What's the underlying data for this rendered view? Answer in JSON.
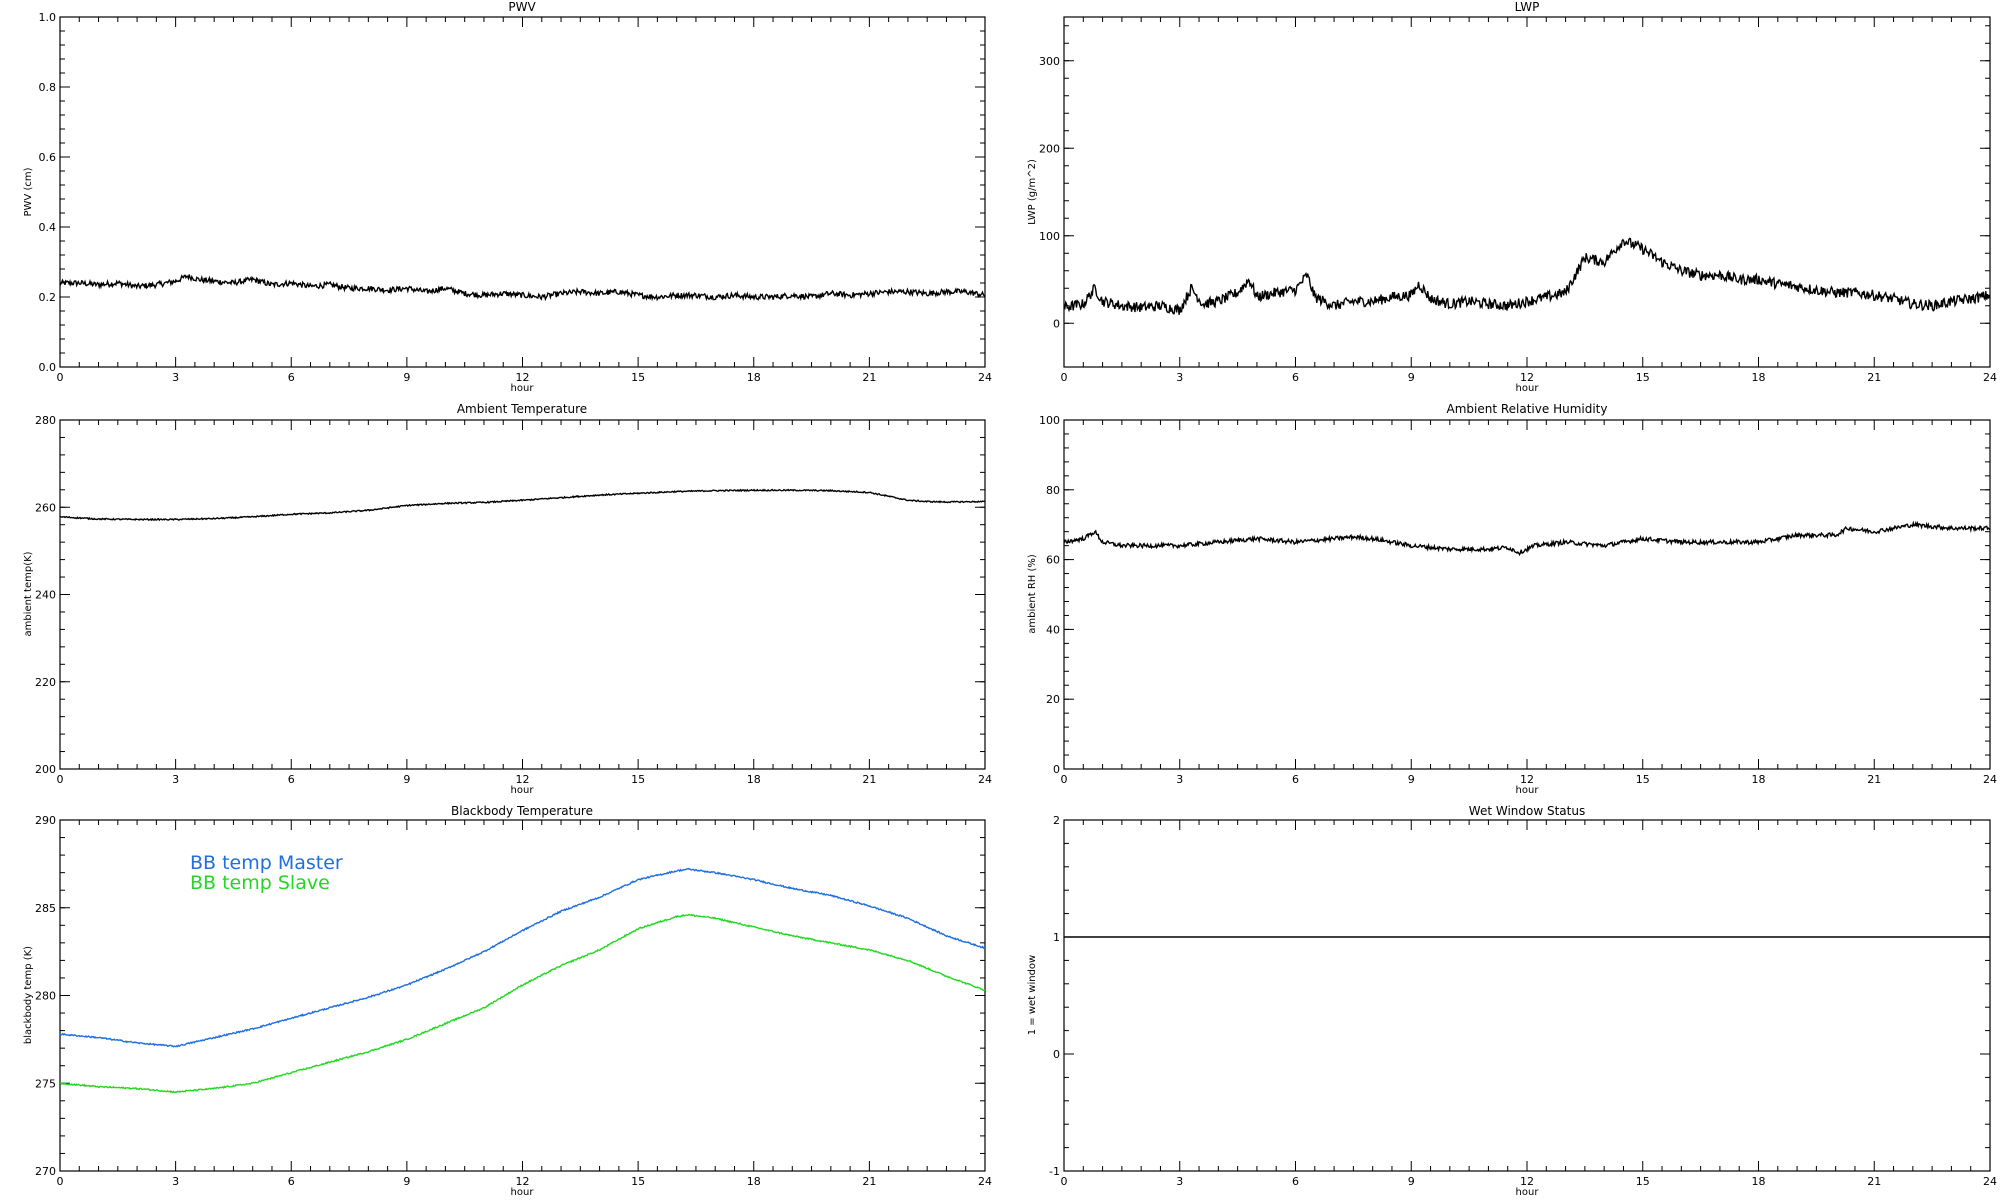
{
  "figure": {
    "panels": [
      {
        "title": "PWV",
        "xlabel": "hour",
        "ylabel": "PWV (cm)"
      },
      {
        "title": "LWP",
        "xlabel": "hour",
        "ylabel": "LWP (g/m^2)"
      },
      {
        "title": "Ambient Temperature",
        "xlabel": "hour",
        "ylabel": "ambient temp(K)"
      },
      {
        "title": "Ambient Relative Humidity",
        "xlabel": "hour",
        "ylabel": "ambient RH (%)"
      },
      {
        "title": "Blackbody Temperature",
        "xlabel": "hour",
        "ylabel": "blackbody temp (K)",
        "legend": [
          "BB temp Master",
          "BB temp Slave"
        ]
      },
      {
        "title": "Wet Window Status",
        "xlabel": "hour",
        "ylabel": "1 = wet window"
      }
    ]
  },
  "chart_data": [
    {
      "type": "line",
      "title": "PWV",
      "xlabel": "hour",
      "ylabel": "PWV (cm)",
      "xlim": [
        0,
        24
      ],
      "ylim": [
        0.0,
        1.0
      ],
      "xticks": [
        0,
        3,
        6,
        9,
        12,
        15,
        18,
        21,
        24
      ],
      "yticks": [
        0.0,
        0.2,
        0.4,
        0.6,
        0.8,
        1.0
      ],
      "ytick_labels": [
        "0.0",
        "0.2",
        "0.4",
        "0.6",
        "0.8",
        "1.0"
      ],
      "noise": 0.008,
      "color": "#000000",
      "series": [
        {
          "x": [
            0,
            0.5,
            1,
            1.5,
            2,
            2.5,
            3,
            3.3,
            3.6,
            4,
            4.5,
            5,
            5.5,
            6,
            6.5,
            7,
            7.5,
            8,
            8.5,
            9,
            9.5,
            10,
            10.5,
            11,
            11.5,
            12,
            12.5,
            13,
            13.5,
            14,
            14.5,
            15,
            15.5,
            16,
            16.5,
            17,
            17.5,
            18,
            18.5,
            19,
            19.5,
            20,
            20.5,
            21,
            21.5,
            22,
            22.5,
            23,
            23.5,
            24
          ],
          "values": [
            0.24,
            0.24,
            0.235,
            0.24,
            0.23,
            0.235,
            0.245,
            0.26,
            0.25,
            0.245,
            0.24,
            0.25,
            0.235,
            0.24,
            0.23,
            0.235,
            0.225,
            0.225,
            0.22,
            0.225,
            0.215,
            0.225,
            0.21,
            0.205,
            0.21,
            0.205,
            0.2,
            0.21,
            0.215,
            0.21,
            0.215,
            0.205,
            0.2,
            0.205,
            0.205,
            0.2,
            0.205,
            0.2,
            0.2,
            0.205,
            0.2,
            0.21,
            0.205,
            0.21,
            0.215,
            0.215,
            0.21,
            0.215,
            0.215,
            0.205
          ]
        }
      ]
    },
    {
      "type": "line",
      "title": "LWP",
      "xlabel": "hour",
      "ylabel": "LWP (g/m^2)",
      "xlim": [
        0,
        24
      ],
      "ylim": [
        -50,
        350
      ],
      "xticks": [
        0,
        3,
        6,
        9,
        12,
        15,
        18,
        21,
        24
      ],
      "yticks": [
        0,
        100,
        200,
        300
      ],
      "ytick_labels": [
        "0",
        "100",
        "200",
        "300"
      ],
      "noise": 6,
      "color": "#000000",
      "series": [
        {
          "x": [
            0,
            0.5,
            0.8,
            1,
            1.5,
            2,
            2.5,
            3,
            3.3,
            3.6,
            4,
            4.5,
            4.8,
            5,
            5.5,
            6,
            6.3,
            6.5,
            7,
            7.5,
            8,
            8.5,
            9,
            9.2,
            9.5,
            10,
            10.5,
            11,
            11.5,
            12,
            12.5,
            13,
            13.5,
            14,
            14.5,
            15,
            15.5,
            16,
            16.5,
            17,
            17.5,
            18,
            18.5,
            19,
            19.5,
            20,
            20.5,
            21,
            21.5,
            22,
            22.5,
            23,
            23.5,
            24
          ],
          "values": [
            18,
            22,
            40,
            25,
            20,
            18,
            20,
            15,
            40,
            22,
            25,
            35,
            50,
            30,
            35,
            38,
            55,
            30,
            20,
            25,
            25,
            30,
            32,
            45,
            28,
            22,
            25,
            22,
            20,
            25,
            30,
            35,
            75,
            70,
            95,
            85,
            70,
            60,
            55,
            55,
            50,
            50,
            45,
            42,
            38,
            35,
            35,
            32,
            28,
            22,
            20,
            25,
            28,
            32
          ]
        }
      ]
    },
    {
      "type": "line",
      "title": "Ambient Temperature",
      "xlabel": "hour",
      "ylabel": "ambient temp(K)",
      "xlim": [
        0,
        24
      ],
      "ylim": [
        200,
        280
      ],
      "xticks": [
        0,
        3,
        6,
        9,
        12,
        15,
        18,
        21,
        24
      ],
      "yticks": [
        200,
        220,
        240,
        260,
        280
      ],
      "ytick_labels": [
        "200",
        "220",
        "240",
        "260",
        "280"
      ],
      "noise": 0.15,
      "color": "#000000",
      "series": [
        {
          "x": [
            0,
            1,
            2,
            3,
            4,
            5,
            6,
            7,
            8,
            9,
            10,
            11,
            12,
            13,
            14,
            15,
            16,
            17,
            18,
            19,
            20,
            21,
            21.5,
            22,
            22.5,
            23,
            24
          ],
          "values": [
            257.8,
            257.3,
            257.2,
            257.2,
            257.4,
            257.8,
            258.4,
            258.7,
            259.3,
            260.4,
            260.9,
            261.1,
            261.6,
            262.2,
            262.8,
            263.2,
            263.6,
            263.8,
            263.9,
            263.9,
            263.8,
            263.4,
            262.5,
            261.6,
            261.3,
            261.2,
            261.3
          ]
        }
      ]
    },
    {
      "type": "line",
      "title": "Ambient Relative Humidity",
      "xlabel": "hour",
      "ylabel": "ambient RH (%)",
      "xlim": [
        0,
        24
      ],
      "ylim": [
        0,
        100
      ],
      "xticks": [
        0,
        3,
        6,
        9,
        12,
        15,
        18,
        21,
        24
      ],
      "yticks": [
        0,
        20,
        40,
        60,
        80,
        100
      ],
      "ytick_labels": [
        "0",
        "20",
        "40",
        "60",
        "80",
        "100"
      ],
      "noise": 0.6,
      "color": "#000000",
      "series": [
        {
          "x": [
            0,
            0.5,
            0.8,
            1,
            1.5,
            2,
            3,
            4,
            5,
            6,
            7,
            7.5,
            8,
            9,
            10,
            11,
            11.5,
            11.8,
            12.2,
            13,
            14,
            15,
            16,
            17,
            18,
            19,
            20,
            20.3,
            21,
            21.5,
            22,
            23,
            24
          ],
          "values": [
            65,
            66,
            68,
            65,
            64,
            64,
            64,
            65,
            66,
            65,
            66,
            66.5,
            66,
            64,
            63,
            63,
            63.5,
            62,
            64,
            65,
            64,
            66,
            65,
            65,
            65,
            67,
            67,
            69,
            68,
            69,
            70,
            69,
            69
          ]
        }
      ]
    },
    {
      "type": "line",
      "title": "Blackbody Temperature",
      "xlabel": "hour",
      "ylabel": "blackbody temp (K)",
      "xlim": [
        0,
        24
      ],
      "ylim": [
        270,
        290
      ],
      "xticks": [
        0,
        3,
        6,
        9,
        12,
        15,
        18,
        21,
        24
      ],
      "yticks": [
        270,
        275,
        280,
        285,
        290
      ],
      "ytick_labels": [
        "270",
        "275",
        "280",
        "285",
        "290"
      ],
      "legend": "top-left",
      "noise": 0.04,
      "series": [
        {
          "name": "BB temp Master",
          "color": "#1f6fe0",
          "x": [
            0,
            1,
            2,
            3,
            4,
            5,
            6,
            7,
            8,
            9,
            10,
            11,
            12,
            13,
            14,
            15,
            16,
            16.3,
            17,
            18,
            19,
            20,
            21,
            22,
            23,
            24
          ],
          "values": [
            277.8,
            277.6,
            277.3,
            277.1,
            277.6,
            278.1,
            278.7,
            279.3,
            279.9,
            280.6,
            281.5,
            282.5,
            283.7,
            284.8,
            285.6,
            286.6,
            287.1,
            287.2,
            287.0,
            286.6,
            286.1,
            285.7,
            285.1,
            284.4,
            283.4,
            282.7
          ]
        },
        {
          "name": "BB temp Slave",
          "color": "#22d822",
          "x": [
            0,
            1,
            2,
            3,
            4,
            5,
            6,
            7,
            8,
            9,
            10,
            11,
            12,
            13,
            14,
            15,
            16,
            16.3,
            17,
            18,
            19,
            20,
            21,
            22,
            23,
            24
          ],
          "values": [
            275.0,
            274.8,
            274.7,
            274.5,
            274.7,
            275.0,
            275.6,
            276.2,
            276.8,
            277.5,
            278.4,
            279.3,
            280.6,
            281.7,
            282.6,
            283.8,
            284.5,
            284.6,
            284.4,
            283.9,
            283.4,
            283.0,
            282.6,
            282.0,
            281.1,
            280.3
          ]
        }
      ]
    },
    {
      "type": "line",
      "title": "Wet Window Status",
      "xlabel": "hour",
      "ylabel": "1 = wet window",
      "xlim": [
        0,
        24
      ],
      "ylim": [
        -1,
        2
      ],
      "xticks": [
        0,
        3,
        6,
        9,
        12,
        15,
        18,
        21,
        24
      ],
      "yticks": [
        -1,
        0,
        1,
        2
      ],
      "ytick_labels": [
        "-1",
        "0",
        "1",
        "2"
      ],
      "noise": 0,
      "color": "#000000",
      "series": [
        {
          "x": [
            0,
            24
          ],
          "values": [
            1,
            1
          ]
        }
      ]
    }
  ]
}
